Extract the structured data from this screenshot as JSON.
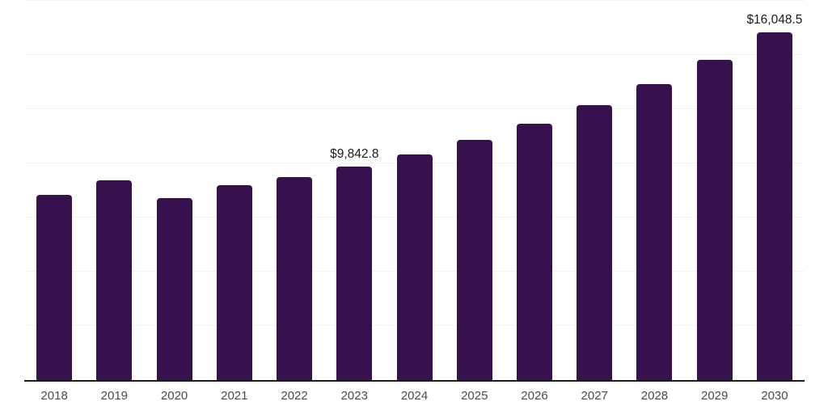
{
  "chart": {
    "background_color": "#ffffff",
    "bar_color": "#36114e",
    "grid_color": "#f2f2f2",
    "axis_color": "#1a1a1a",
    "value_label_color": "#1a1a1a",
    "tick_label_color": "#4a4a4a"
  },
  "chart_data": {
    "type": "bar",
    "title": "",
    "xlabel": "",
    "ylabel": "",
    "categories": [
      "2018",
      "2019",
      "2020",
      "2021",
      "2022",
      "2023",
      "2024",
      "2025",
      "2026",
      "2027",
      "2028",
      "2029",
      "2030"
    ],
    "values": [
      8540,
      9210,
      8390,
      8990,
      9360,
      9842.8,
      10410,
      11080,
      11820,
      12680,
      13650,
      14770,
      16048.5
    ],
    "data_labels": [
      "",
      "",
      "",
      "",
      "",
      "$9,842.8",
      "",
      "",
      "",
      "",
      "",
      "",
      "$16,048.5"
    ],
    "ylim": [
      0,
      17530
    ],
    "grid_step": 2500,
    "grid": "horizontal",
    "y_tick_labels": "none",
    "legend": "none"
  }
}
